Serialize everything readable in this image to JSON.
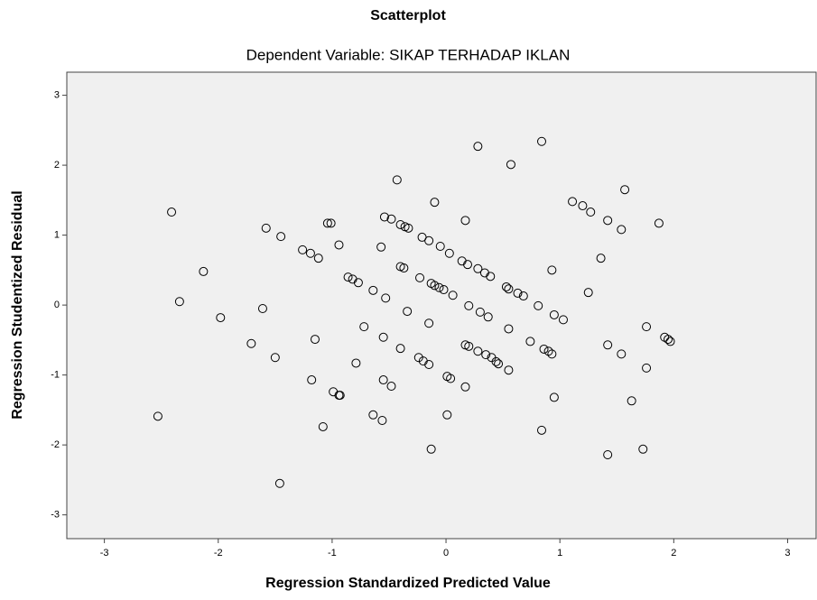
{
  "chart_data": {
    "type": "scatter",
    "title": "Scatterplot",
    "subtitle": "Dependent Variable: SIKAP TERHADAP IKLAN",
    "x_label": "Regression Standardized Predicted Value",
    "y_label": "Regression Studentized Residual",
    "x": [
      0.28,
      0.84,
      0.57,
      -0.43,
      -0.1,
      1.57,
      1.11,
      1.2,
      1.27,
      1.42,
      1.54,
      1.87,
      -2.41,
      -1.58,
      -1.45,
      -1.04,
      -1.01,
      -0.54,
      -0.48,
      -0.4,
      -0.36,
      -0.33,
      0.17,
      -0.21,
      -0.15,
      -0.05,
      0.03,
      0.14,
      0.19,
      0.28,
      0.34,
      0.39,
      -0.94,
      -1.26,
      -1.19,
      -1.12,
      -0.57,
      1.36,
      -2.13,
      0.93,
      -0.4,
      -0.37,
      -0.86,
      -0.82,
      -0.77,
      -0.64,
      -0.53,
      -0.23,
      -0.13,
      -0.1,
      -0.06,
      -0.02,
      0.06,
      0.53,
      0.55,
      0.63,
      0.68,
      1.25,
      -2.34,
      0.81,
      0.2,
      0.3,
      0.37,
      0.95,
      1.03,
      -0.34,
      -1.98,
      -1.61,
      0.55,
      -0.15,
      -0.72,
      1.76,
      0.74,
      -1.15,
      -0.55,
      -1.71,
      0.17,
      0.2,
      0.28,
      0.35,
      0.4,
      0.44,
      0.46,
      0.86,
      0.9,
      0.93,
      1.42,
      1.54,
      1.92,
      1.95,
      1.97,
      -0.4,
      -1.5,
      -0.79,
      -0.24,
      -0.2,
      -0.15,
      0.55,
      1.76,
      -1.18,
      -0.55,
      -0.48,
      0.01,
      0.04,
      0.17,
      -0.99,
      -0.94,
      -0.93,
      0.95,
      1.63,
      -0.64,
      -0.56,
      -2.53,
      0.01,
      -1.08,
      0.84,
      -0.13,
      1.42,
      1.73,
      -1.46
    ],
    "values": [
      2.27,
      2.34,
      2.01,
      1.79,
      1.47,
      1.65,
      1.48,
      1.42,
      1.33,
      1.21,
      1.08,
      1.17,
      1.33,
      1.1,
      0.98,
      1.17,
      1.17,
      1.26,
      1.23,
      1.15,
      1.12,
      1.1,
      1.21,
      0.97,
      0.92,
      0.84,
      0.74,
      0.63,
      0.58,
      0.52,
      0.46,
      0.41,
      0.86,
      0.79,
      0.74,
      0.67,
      0.83,
      0.67,
      0.48,
      0.5,
      0.55,
      0.53,
      0.4,
      0.37,
      0.32,
      0.21,
      0.1,
      0.39,
      0.31,
      0.28,
      0.25,
      0.22,
      0.14,
      0.26,
      0.23,
      0.17,
      0.13,
      0.18,
      0.05,
      -0.01,
      -0.01,
      -0.1,
      -0.17,
      -0.14,
      -0.21,
      -0.09,
      -0.18,
      -0.05,
      -0.34,
      -0.26,
      -0.31,
      -0.31,
      -0.52,
      -0.49,
      -0.46,
      -0.55,
      -0.57,
      -0.59,
      -0.66,
      -0.71,
      -0.75,
      -0.81,
      -0.84,
      -0.63,
      -0.66,
      -0.7,
      -0.57,
      -0.7,
      -0.46,
      -0.49,
      -0.52,
      -0.62,
      -0.75,
      -0.83,
      -0.75,
      -0.8,
      -0.85,
      -0.93,
      -0.9,
      -1.07,
      -1.07,
      -1.16,
      -1.02,
      -1.05,
      -1.17,
      -1.24,
      -1.29,
      -1.29,
      -1.32,
      -1.37,
      -1.57,
      -1.65,
      -1.59,
      -1.57,
      -1.74,
      -1.79,
      -2.06,
      -2.14,
      -2.06,
      -2.55
    ],
    "xlim": [
      -3.33,
      3.25
    ],
    "xticks": [
      -3,
      -2,
      -1,
      0,
      1,
      2,
      3
    ],
    "ylim": [
      -3.34,
      3.33
    ],
    "yticks": [
      -3,
      -2,
      -1,
      0,
      1,
      2,
      3
    ],
    "color": "#000000"
  }
}
